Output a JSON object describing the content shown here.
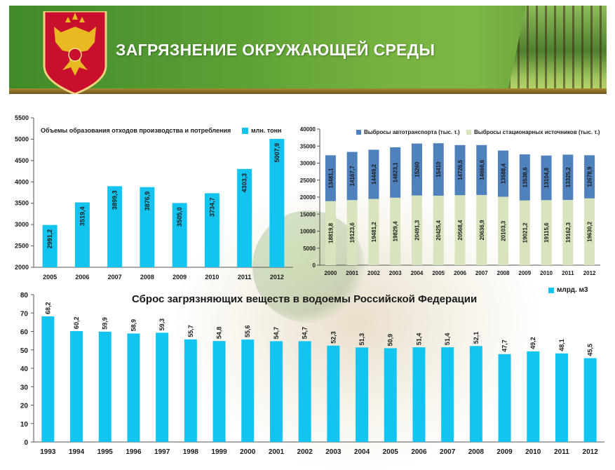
{
  "header": {
    "title": "ЗАГРЯЗНЕНИЕ ОКРУЖАЮЩЕЙ СРЕДЫ",
    "emblem_icon": "russian-coat-of-arms-icon"
  },
  "colors": {
    "bar_cyan": "#14c4f0",
    "bar_blue": "#4f81bd",
    "bar_green": "#d7e4bd",
    "banner_green": "#5ea236"
  },
  "chart_data": [
    {
      "id": "waste",
      "type": "bar",
      "title": "Объемы образования отходов производства и потребления",
      "legend": "млн. тонн",
      "categories": [
        "2005",
        "2006",
        "2007",
        "2008",
        "2009",
        "2010",
        "2011",
        "2012"
      ],
      "values": [
        2991.2,
        3519.4,
        3899.3,
        3876.9,
        3505.0,
        3734.7,
        4303.3,
        5007.9
      ],
      "labels": [
        "2991,2",
        "3519,4",
        "3899,3",
        "3876,9",
        "3505,0",
        "3734,7",
        "4303,3",
        "5007,9"
      ],
      "ylim": [
        2000,
        5500
      ],
      "yticks": [
        "2000",
        "2500",
        "3000",
        "3500",
        "4000",
        "4500",
        "5000",
        "5500"
      ]
    },
    {
      "id": "emissions",
      "type": "bar",
      "stacked": true,
      "categories": [
        "2000",
        "2001",
        "2002",
        "2003",
        "2004",
        "2005",
        "2006",
        "2007",
        "2008",
        "2009",
        "2010",
        "2011",
        "2012"
      ],
      "series": [
        {
          "name": "Выбросы стационарных источников (тыс. т.)",
          "values": [
            18819.8,
            19123.6,
            19481.2,
            19829.4,
            20491.3,
            20425.4,
            20568.4,
            20636.9,
            20103.3,
            19021.2,
            19115.6,
            19162.3,
            19630.2
          ],
          "labels": [
            "18819,8",
            "19123,6",
            "19481,2",
            "19829,4",
            "20491,3",
            "20425,4",
            "20568,4",
            "20636,9",
            "20103,3",
            "19021,2",
            "19115,6",
            "19162,3",
            "19630,2"
          ]
        },
        {
          "name": "Выбросы автотранспорта (тыс. т.)",
          "values": [
            13481.1,
            14167.7,
            14449.2,
            14823.1,
            15260,
            15410,
            14726.5,
            14666.6,
            13588.4,
            13538.6,
            13104.8,
            13325.2,
            12678.9
          ],
          "labels": [
            "13481,1",
            "14167,7",
            "14449,2",
            "14823,1",
            "15260",
            "15410",
            "14726,5",
            "14666,6",
            "13588,4",
            "13538,6",
            "13104,8",
            "13325,2",
            "12678,9"
          ]
        }
      ],
      "ylim": [
        0,
        40000
      ],
      "yticks": [
        "0",
        "5000",
        "10000",
        "15000",
        "20000",
        "25000",
        "30000",
        "35000",
        "40000"
      ]
    },
    {
      "id": "discharge",
      "type": "bar",
      "title": "Сброс загрязняющих веществ в водоемы Российской Федерации",
      "legend": "млрд. м3",
      "categories": [
        "1993",
        "1994",
        "1995",
        "1996",
        "1997",
        "1998",
        "1999",
        "2000",
        "2001",
        "2002",
        "2003",
        "2004",
        "2005",
        "2006",
        "2007",
        "2008",
        "2009",
        "2010",
        "2011",
        "2012"
      ],
      "values": [
        68.2,
        60.2,
        59.9,
        58.9,
        59.3,
        55.7,
        54.8,
        55.6,
        54.7,
        54.7,
        52.3,
        51.3,
        50.9,
        51.4,
        51.4,
        52.1,
        47.7,
        49.2,
        48.1,
        45.5
      ],
      "labels": [
        "68,2",
        "60,2",
        "59,9",
        "58,9",
        "59,3",
        "55,7",
        "54,8",
        "55,6",
        "54,7",
        "54,7",
        "52,3",
        "51,3",
        "50,9",
        "51,4",
        "51,4",
        "52,1",
        "47,7",
        "49,2",
        "48,1",
        "45,5"
      ],
      "ylim": [
        0,
        80
      ],
      "yticks": [
        "0",
        "10",
        "20",
        "30",
        "40",
        "50",
        "60",
        "70",
        "80"
      ]
    }
  ]
}
